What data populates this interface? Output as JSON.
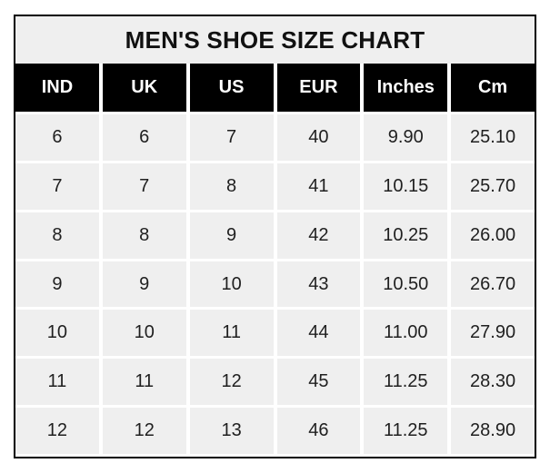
{
  "chart_data": {
    "type": "table",
    "title": "MEN'S SHOE SIZE CHART",
    "columns": [
      "IND",
      "UK",
      "US",
      "EUR",
      "Inches",
      "Cm"
    ],
    "rows": [
      [
        "6",
        "6",
        "7",
        "40",
        "9.90",
        "25.10"
      ],
      [
        "7",
        "7",
        "8",
        "41",
        "10.15",
        "25.70"
      ],
      [
        "8",
        "8",
        "9",
        "42",
        "10.25",
        "26.00"
      ],
      [
        "9",
        "9",
        "10",
        "43",
        "10.50",
        "26.70"
      ],
      [
        "10",
        "10",
        "11",
        "44",
        "11.00",
        "27.90"
      ],
      [
        "11",
        "11",
        "12",
        "45",
        "11.25",
        "28.30"
      ],
      [
        "12",
        "12",
        "13",
        "46",
        "11.25",
        "28.90"
      ]
    ],
    "colors": {
      "border": "#000000",
      "title_background": "#efefef",
      "header_background": "#000000",
      "header_text": "#ffffff",
      "cell_background": "#efefef",
      "cell_text": "#1f1f1f",
      "grid_lines": "#ffffff"
    }
  }
}
